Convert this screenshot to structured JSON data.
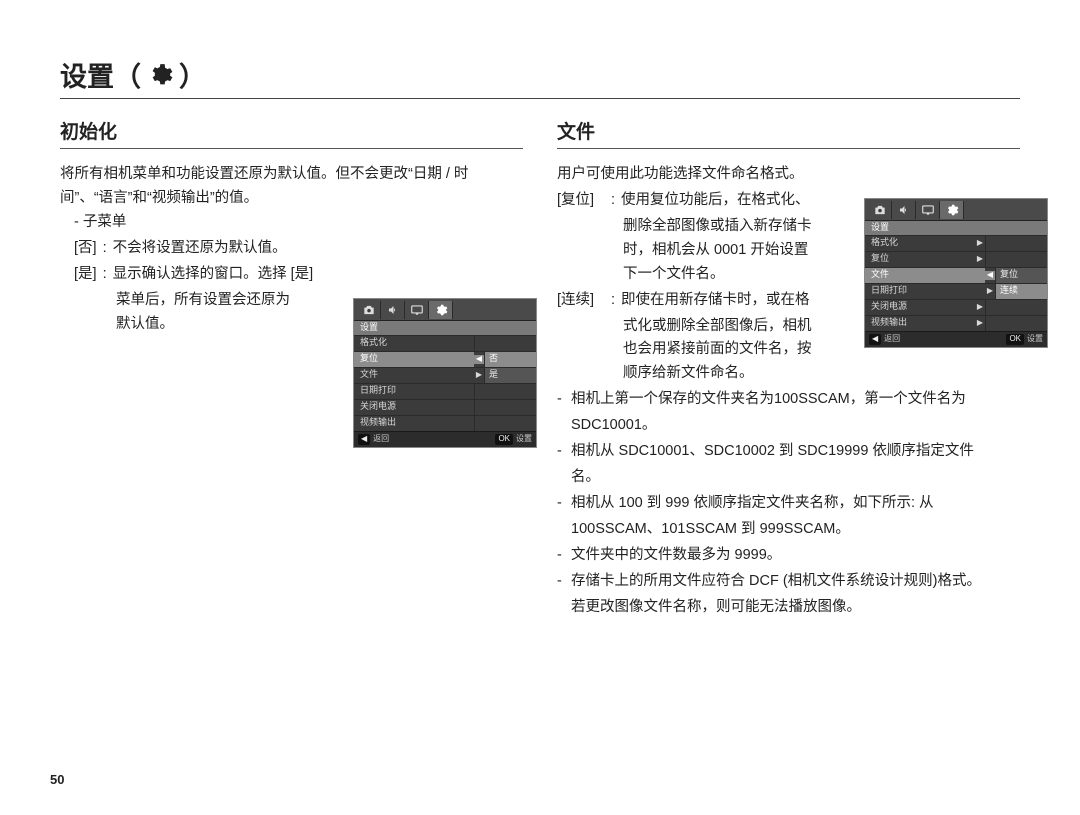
{
  "page_number": "50",
  "title": {
    "text": "设置",
    "open_p": "（",
    "close_p": "）",
    "icon": "gear-icon"
  },
  "colors": {
    "page_bg": "#ffffff",
    "text": "#222222",
    "rule": "#444444",
    "cam_bg": "#3b3b3b",
    "cam_tab_bg": "#4a4a4a",
    "cam_tab_active": "#6a6a6a",
    "cam_header_bg": "#7a7a7a",
    "cam_row_sel": "#8c8c8c",
    "cam_val_bg": "#555555",
    "cam_footer_bg": "#2c2c2c"
  },
  "left": {
    "heading": "初始化",
    "intro_l1": "将所有相机菜单和功能设置还原为默认值。但不会更改“日期 / 时",
    "intro_l2": "间”、“语言”和“视频输出”的值。",
    "submenu_head": "- 子菜单",
    "no_key": "[否]",
    "colon": ":",
    "no_val": "不会将设置还原为默认值。",
    "yes_key": "[是]",
    "yes_val_l1": "显示确认选择的窗口。选择 [是]",
    "yes_val_l2": "菜单后，所有设置会还原为",
    "yes_val_l3": "默认值。"
  },
  "right": {
    "heading": "文件",
    "intro": "用户可使用此功能选择文件命名格式。",
    "reset_key": "[复位]",
    "colon": ":",
    "reset_l1": "使用复位功能后，在格式化、",
    "reset_l2": "删除全部图像或插入新存储卡",
    "reset_l3": "时，相机会从 0001 开始设置",
    "reset_l4": "下一个文件名。",
    "cont_key": "[连续]",
    "cont_l1": "即使在用新存储卡时，或在格",
    "cont_l2": "式化或删除全部图像后，相机",
    "cont_l3": "也会用紧接前面的文件名，按",
    "cont_l4": "顺序给新文件命名。",
    "b1_l1": "相机上第一个保存的文件夹名为100SSCAM，第一个文件名为",
    "b1_l2": "SDC10001。",
    "b2_l1": "相机从 SDC10001、SDC10002 到 SDC19999 依顺序指定文件",
    "b2_l2": "名。",
    "b3_l1": "相机从 100 到 999 依顺序指定文件夹名称，如下所示: 从",
    "b3_l2": "100SSCAM、101SSCAM 到 999SSCAM。",
    "b4": "文件夹中的文件数最多为 9999。",
    "b5_l1": "存储卡上的所用文件应符合 DCF (相机文件系统设计规则)格式。",
    "b5_l2": "若更改图像文件名称，则可能无法播放图像。"
  },
  "cam_left": {
    "header": "设置",
    "rows": [
      {
        "label": "格式化",
        "sel": false,
        "spacer": true
      },
      {
        "label": "复位",
        "sel": true,
        "sel_arrow": true,
        "val": "否",
        "val_hl": true
      },
      {
        "label": "文件",
        "sel": false,
        "right_arrow": true,
        "val": "是"
      },
      {
        "label": "日期打印",
        "sel": false,
        "spacer": true
      },
      {
        "label": "关闭电源",
        "sel": false,
        "spacer": true
      },
      {
        "label": "视频输出",
        "sel": false,
        "spacer": true
      }
    ],
    "footer": {
      "back_sym": "◀",
      "back": "返回",
      "ok_key": "OK",
      "ok": "设置"
    }
  },
  "cam_right": {
    "header": "设置",
    "rows": [
      {
        "label": "格式化",
        "sel": false,
        "right_arrow": true,
        "spacer": true
      },
      {
        "label": "复位",
        "sel": false,
        "right_arrow": true,
        "spacer": true
      },
      {
        "label": "文件",
        "sel": true,
        "sel_arrow": true,
        "val": "复位",
        "val_hl": false
      },
      {
        "label": "日期打印",
        "sel": false,
        "right_arrow": true,
        "val": "连续",
        "val_hl": true
      },
      {
        "label": "关闭电源",
        "sel": false,
        "right_arrow": true,
        "spacer": true
      },
      {
        "label": "视频输出",
        "sel": false,
        "right_arrow": true,
        "spacer": true
      }
    ],
    "footer": {
      "back_sym": "◀",
      "back": "返回",
      "ok_key": "OK",
      "ok": "设置"
    }
  }
}
